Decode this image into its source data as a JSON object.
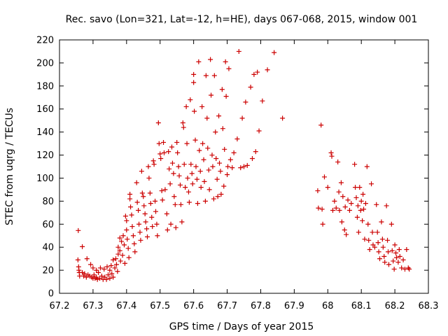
{
  "chart_data": {
    "type": "scatter",
    "title": "Rec. savo (Lon=321, Lat=-12, h=HE), days 067-068, 2015, window 001",
    "xlabel": "GPS time / Days of year 2015",
    "ylabel": "STEC from uqrg / TECUs",
    "xlim": [
      67.2,
      68.3
    ],
    "ylim": [
      0,
      220
    ],
    "x_ticks": [
      67.2,
      67.3,
      67.4,
      67.5,
      67.6,
      67.7,
      67.8,
      67.9,
      68,
      68.1,
      68.2,
      68.3
    ],
    "x_tick_labels": [
      "67.2",
      "67.3",
      "67.4",
      "67.5",
      "67.6",
      "67.7",
      "67.8",
      "67.9",
      "68",
      "68.1",
      "68.2",
      "68.3"
    ],
    "y_ticks": [
      0,
      20,
      40,
      60,
      80,
      100,
      120,
      140,
      160,
      180,
      200,
      220
    ],
    "y_tick_labels": [
      "0",
      "20",
      "40",
      "60",
      "80",
      "100",
      "120",
      "140",
      "160",
      "180",
      "200",
      "220"
    ],
    "grid": false,
    "marker": "+",
    "marker_color": "#cc0000",
    "points": [
      [
        67.256,
        54.5
      ],
      [
        67.255,
        29
      ],
      [
        67.257,
        23
      ],
      [
        67.258,
        20
      ],
      [
        67.259,
        18
      ],
      [
        67.26,
        15
      ],
      [
        67.268,
        40.5
      ],
      [
        67.268,
        18
      ],
      [
        67.272,
        15
      ],
      [
        67.275,
        17
      ],
      [
        67.28,
        14
      ],
      [
        67.282,
        30
      ],
      [
        67.285,
        16
      ],
      [
        67.29,
        15
      ],
      [
        67.293,
        25
      ],
      [
        67.296,
        14
      ],
      [
        67.3,
        13
      ],
      [
        67.3,
        22
      ],
      [
        67.303,
        16
      ],
      [
        67.306,
        13
      ],
      [
        67.31,
        20
      ],
      [
        67.31,
        14
      ],
      [
        67.313,
        12
      ],
      [
        67.316,
        18
      ],
      [
        67.32,
        13
      ],
      [
        67.322,
        22
      ],
      [
        67.326,
        15
      ],
      [
        67.33,
        12
      ],
      [
        67.333,
        21
      ],
      [
        67.335,
        14
      ],
      [
        67.34,
        12
      ],
      [
        67.342,
        23
      ],
      [
        67.345,
        16
      ],
      [
        67.35,
        13
      ],
      [
        67.35,
        20
      ],
      [
        67.354,
        24
      ],
      [
        67.356,
        17
      ],
      [
        67.36,
        14
      ],
      [
        67.36,
        29
      ],
      [
        67.365,
        22
      ],
      [
        67.368,
        30
      ],
      [
        67.37,
        25
      ],
      [
        67.373,
        19
      ],
      [
        67.375,
        40
      ],
      [
        67.375,
        34
      ],
      [
        67.38,
        48
      ],
      [
        67.38,
        37
      ],
      [
        67.382,
        28
      ],
      [
        67.385,
        45
      ],
      [
        67.388,
        33
      ],
      [
        67.39,
        50
      ],
      [
        67.393,
        42
      ],
      [
        67.395,
        26
      ],
      [
        67.397,
        67
      ],
      [
        67.4,
        63
      ],
      [
        67.4,
        55
      ],
      [
        67.402,
        47
      ],
      [
        67.405,
        39
      ],
      [
        67.407,
        31
      ],
      [
        67.41,
        86
      ],
      [
        67.41,
        82
      ],
      [
        67.412,
        75
      ],
      [
        67.415,
        68
      ],
      [
        67.417,
        58
      ],
      [
        67.42,
        50
      ],
      [
        67.423,
        43
      ],
      [
        67.425,
        36
      ],
      [
        67.43,
        96
      ],
      [
        67.432,
        79
      ],
      [
        67.435,
        72
      ],
      [
        67.437,
        60
      ],
      [
        67.44,
        53
      ],
      [
        67.442,
        46
      ],
      [
        67.445,
        106
      ],
      [
        67.447,
        87
      ],
      [
        67.45,
        84
      ],
      [
        67.452,
        76
      ],
      [
        67.455,
        69
      ],
      [
        67.457,
        62
      ],
      [
        67.46,
        56
      ],
      [
        67.462,
        49
      ],
      [
        67.465,
        110
      ],
      [
        67.467,
        100
      ],
      [
        67.47,
        87
      ],
      [
        67.472,
        78
      ],
      [
        67.475,
        66
      ],
      [
        67.477,
        58
      ],
      [
        67.48,
        115
      ],
      [
        67.482,
        112
      ],
      [
        67.485,
        80
      ],
      [
        67.487,
        71
      ],
      [
        67.49,
        60
      ],
      [
        67.492,
        50
      ],
      [
        67.495,
        148
      ],
      [
        67.497,
        130
      ],
      [
        67.5,
        121
      ],
      [
        67.502,
        117
      ],
      [
        67.505,
        89
      ],
      [
        67.507,
        81
      ],
      [
        67.51,
        131
      ],
      [
        67.512,
        122
      ],
      [
        67.515,
        90
      ],
      [
        67.52,
        69
      ],
      [
        67.522,
        55
      ],
      [
        67.525,
        123
      ],
      [
        67.527,
        108
      ],
      [
        67.53,
        95
      ],
      [
        67.532,
        60
      ],
      [
        67.535,
        127
      ],
      [
        67.537,
        113
      ],
      [
        67.54,
        104
      ],
      [
        67.542,
        84
      ],
      [
        67.545,
        77
      ],
      [
        67.547,
        57
      ],
      [
        67.55,
        131
      ],
      [
        67.552,
        122
      ],
      [
        67.555,
        110
      ],
      [
        67.557,
        102
      ],
      [
        67.56,
        94
      ],
      [
        67.562,
        77
      ],
      [
        67.565,
        62
      ],
      [
        67.568,
        148
      ],
      [
        67.57,
        144
      ],
      [
        67.572,
        112
      ],
      [
        67.575,
        92
      ],
      [
        67.578,
        162
      ],
      [
        67.58,
        130
      ],
      [
        67.582,
        100
      ],
      [
        67.585,
        88
      ],
      [
        67.587,
        79
      ],
      [
        67.59,
        168
      ],
      [
        67.592,
        112
      ],
      [
        67.595,
        104
      ],
      [
        67.597,
        95
      ],
      [
        67.6,
        190
      ],
      [
        67.6,
        183
      ],
      [
        67.602,
        158
      ],
      [
        67.605,
        133
      ],
      [
        67.607,
        110
      ],
      [
        67.61,
        99
      ],
      [
        67.612,
        78
      ],
      [
        67.615,
        201
      ],
      [
        67.617,
        124
      ],
      [
        67.62,
        106
      ],
      [
        67.622,
        92
      ],
      [
        67.625,
        162
      ],
      [
        67.627,
        130
      ],
      [
        67.63,
        116
      ],
      [
        67.632,
        97
      ],
      [
        67.635,
        80
      ],
      [
        67.637,
        189
      ],
      [
        67.64,
        152
      ],
      [
        67.642,
        126
      ],
      [
        67.645,
        107
      ],
      [
        67.647,
        90
      ],
      [
        67.65,
        203
      ],
      [
        67.652,
        172
      ],
      [
        67.655,
        120
      ],
      [
        67.657,
        110
      ],
      [
        67.66,
        82
      ],
      [
        67.662,
        189
      ],
      [
        67.665,
        140
      ],
      [
        67.667,
        117
      ],
      [
        67.67,
        99
      ],
      [
        67.672,
        84
      ],
      [
        67.675,
        154
      ],
      [
        67.677,
        113
      ],
      [
        67.68,
        106
      ],
      [
        67.682,
        86
      ],
      [
        67.685,
        177
      ],
      [
        67.687,
        143
      ],
      [
        67.69,
        93
      ],
      [
        67.692,
        125
      ],
      [
        67.695,
        201
      ],
      [
        67.697,
        171
      ],
      [
        67.7,
        103
      ],
      [
        67.702,
        110
      ],
      [
        67.705,
        195
      ],
      [
        67.71,
        116
      ],
      [
        67.715,
        109
      ],
      [
        67.72,
        122
      ],
      [
        67.73,
        134
      ],
      [
        67.735,
        210
      ],
      [
        67.74,
        109
      ],
      [
        67.745,
        152
      ],
      [
        67.75,
        110
      ],
      [
        67.755,
        166
      ],
      [
        67.76,
        111
      ],
      [
        67.77,
        179
      ],
      [
        67.775,
        117
      ],
      [
        67.78,
        190
      ],
      [
        67.785,
        123
      ],
      [
        67.79,
        192
      ],
      [
        67.795,
        141
      ],
      [
        67.805,
        167
      ],
      [
        67.82,
        194
      ],
      [
        67.84,
        209
      ],
      [
        67.865,
        152
      ],
      [
        67.97,
        89
      ],
      [
        67.972,
        74
      ],
      [
        67.98,
        146
      ],
      [
        67.983,
        73
      ],
      [
        67.985,
        60
      ],
      [
        67.99,
        101
      ],
      [
        68.0,
        92
      ],
      [
        68.01,
        122
      ],
      [
        68.012,
        119
      ],
      [
        68.015,
        72
      ],
      [
        68.02,
        80
      ],
      [
        68.025,
        74
      ],
      [
        68.03,
        114
      ],
      [
        68.033,
        88
      ],
      [
        68.035,
        72
      ],
      [
        68.04,
        96
      ],
      [
        68.042,
        62
      ],
      [
        68.045,
        84
      ],
      [
        68.05,
        55
      ],
      [
        68.052,
        75
      ],
      [
        68.055,
        51
      ],
      [
        68.06,
        81
      ],
      [
        68.065,
        72
      ],
      [
        68.07,
        78
      ],
      [
        68.08,
        112
      ],
      [
        68.082,
        92
      ],
      [
        68.085,
        83
      ],
      [
        68.088,
        66
      ],
      [
        68.09,
        76
      ],
      [
        68.092,
        53
      ],
      [
        68.095,
        92
      ],
      [
        68.098,
        72
      ],
      [
        68.1,
        80
      ],
      [
        68.103,
        63
      ],
      [
        68.105,
        86
      ],
      [
        68.107,
        73
      ],
      [
        68.11,
        47
      ],
      [
        68.113,
        78
      ],
      [
        68.117,
        110
      ],
      [
        68.12,
        60
      ],
      [
        68.122,
        46
      ],
      [
        68.125,
        38
      ],
      [
        68.13,
        95
      ],
      [
        68.133,
        53
      ],
      [
        68.135,
        42
      ],
      [
        68.14,
        40
      ],
      [
        68.145,
        77
      ],
      [
        68.148,
        53
      ],
      [
        68.15,
        44
      ],
      [
        68.152,
        36
      ],
      [
        68.155,
        30
      ],
      [
        68.16,
        62
      ],
      [
        68.163,
        47
      ],
      [
        68.165,
        40
      ],
      [
        68.168,
        32
      ],
      [
        68.17,
        27
      ],
      [
        68.175,
        76
      ],
      [
        68.178,
        46
      ],
      [
        68.18,
        36
      ],
      [
        68.182,
        25
      ],
      [
        68.19,
        60
      ],
      [
        68.192,
        37
      ],
      [
        68.195,
        28
      ],
      [
        68.198,
        21
      ],
      [
        68.2,
        42
      ],
      [
        68.203,
        35
      ],
      [
        68.205,
        31
      ],
      [
        68.21,
        27
      ],
      [
        68.213,
        38
      ],
      [
        68.215,
        32
      ],
      [
        68.22,
        22
      ],
      [
        68.225,
        29
      ],
      [
        68.23,
        21
      ],
      [
        68.235,
        38
      ],
      [
        68.24,
        22
      ],
      [
        68.243,
        21
      ]
    ]
  }
}
